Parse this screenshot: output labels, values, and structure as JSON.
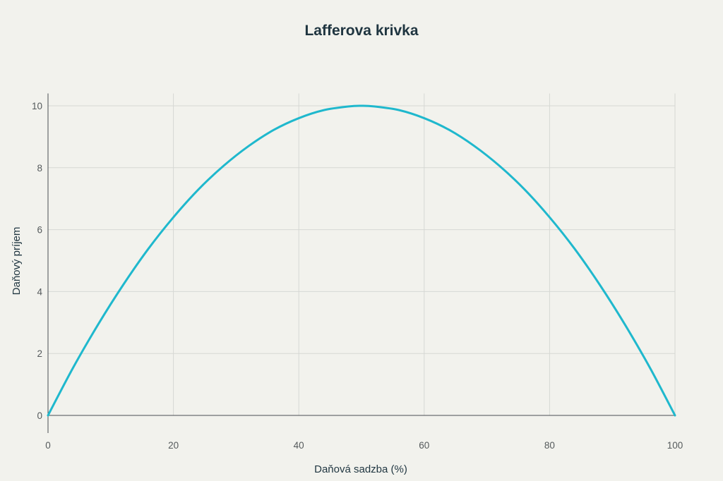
{
  "chart_data": {
    "type": "line",
    "title": "Lafferova krivka",
    "xlabel": "Daňová sadzba (%)",
    "ylabel": "Daňový príjem",
    "xlim": [
      0,
      100
    ],
    "ylim": [
      0,
      10.4
    ],
    "x_ticks": [
      0,
      20,
      40,
      60,
      80,
      100
    ],
    "y_ticks": [
      0,
      2,
      4,
      6,
      8,
      10
    ],
    "grid": true,
    "legend": "none",
    "series": [
      {
        "color": "#1fb8cd",
        "x": [
          0,
          4,
          8,
          12,
          16,
          20,
          24,
          28,
          32,
          36,
          40,
          44,
          48,
          50,
          52,
          56,
          60,
          64,
          68,
          72,
          76,
          80,
          84,
          88,
          92,
          96,
          100
        ],
        "y": [
          0,
          1.54,
          2.94,
          4.22,
          5.38,
          6.4,
          7.3,
          8.06,
          8.7,
          9.22,
          9.6,
          9.86,
          9.98,
          10,
          9.98,
          9.86,
          9.6,
          9.22,
          8.7,
          8.06,
          7.3,
          6.4,
          5.38,
          4.22,
          2.94,
          1.54,
          0
        ]
      }
    ]
  }
}
